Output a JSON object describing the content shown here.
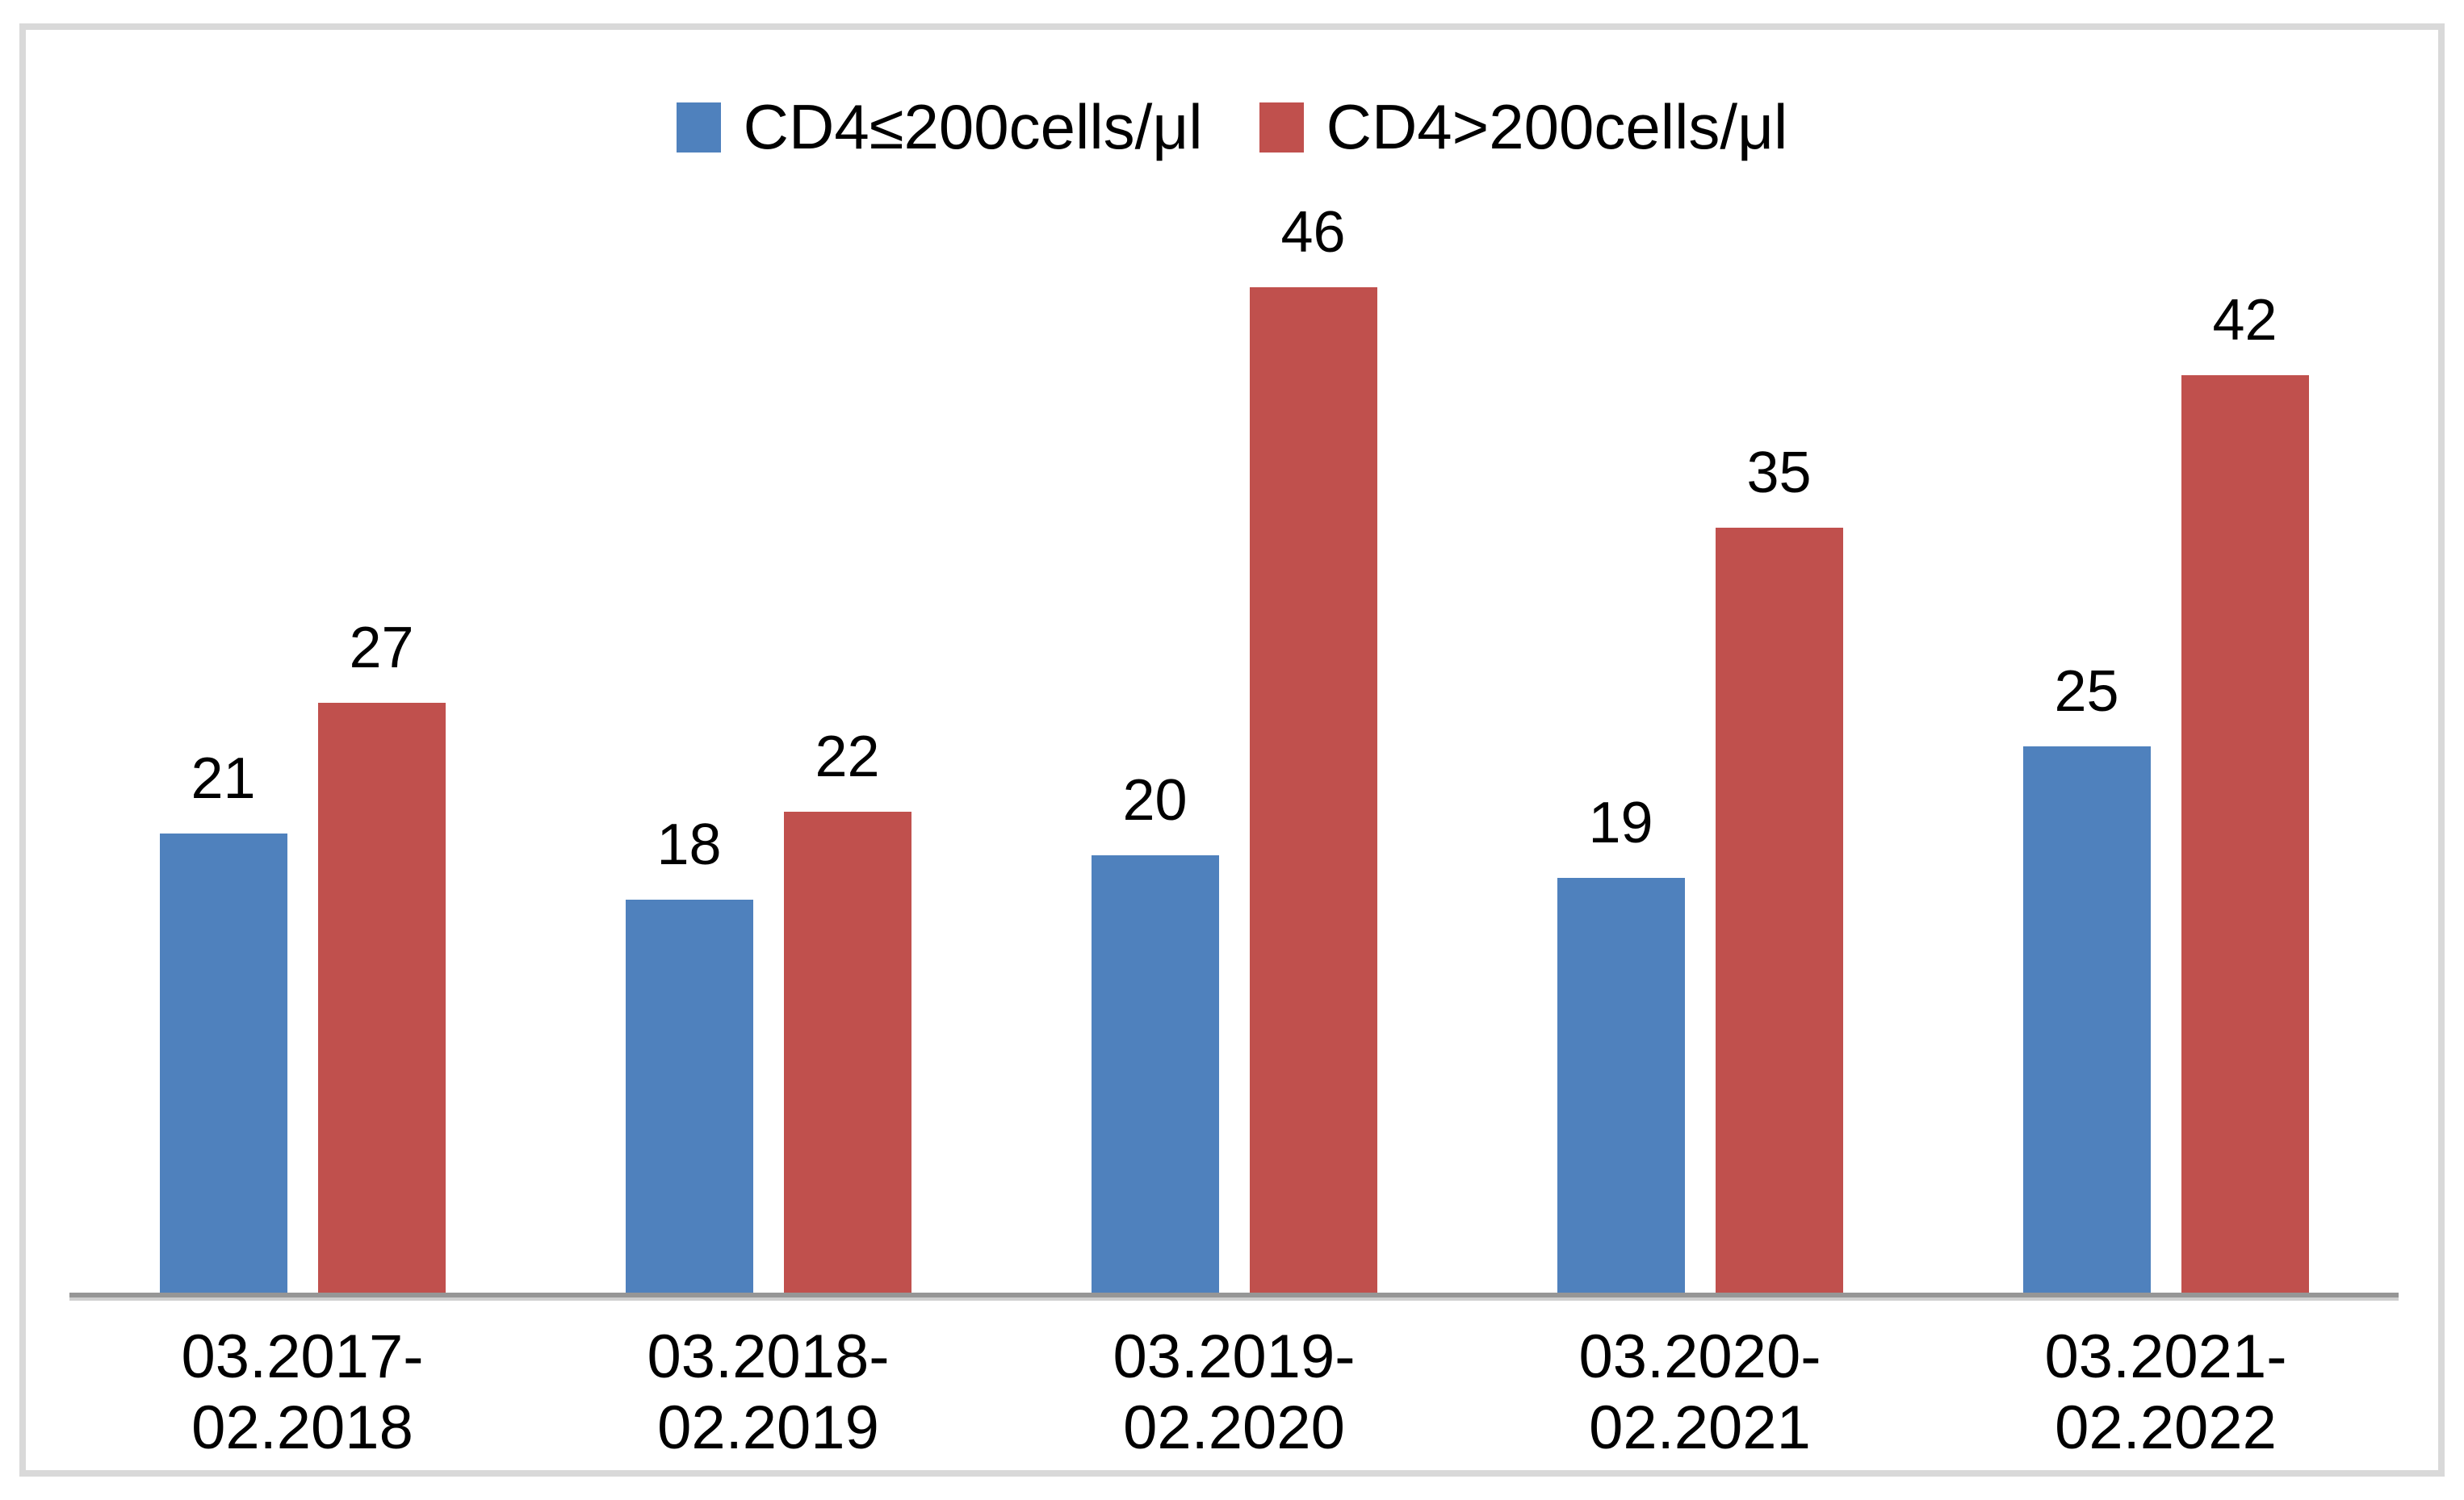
{
  "chart_data": {
    "type": "bar",
    "title": "",
    "xlabel": "",
    "ylabel": "",
    "categories": [
      "03.2017-\n02.2018",
      "03.2018-\n02.2019",
      "03.2019-\n02.2020",
      "03.2020-\n02.2021",
      "03.2021-\n02.2022"
    ],
    "series": [
      {
        "name": "CD4≤200cells/μl",
        "color": "#4F81BD",
        "values": [
          21,
          18,
          20,
          19,
          25
        ]
      },
      {
        "name": "CD4>200cells/μl",
        "color": "#C0504D",
        "values": [
          27,
          22,
          46,
          35,
          42
        ]
      }
    ],
    "ylim": [
      0,
      57.8
    ],
    "grid": false,
    "legend_position": "top-center",
    "data_labels": true,
    "axis_line_color": "#969696",
    "frame_border_color": "#D9D9D9"
  }
}
